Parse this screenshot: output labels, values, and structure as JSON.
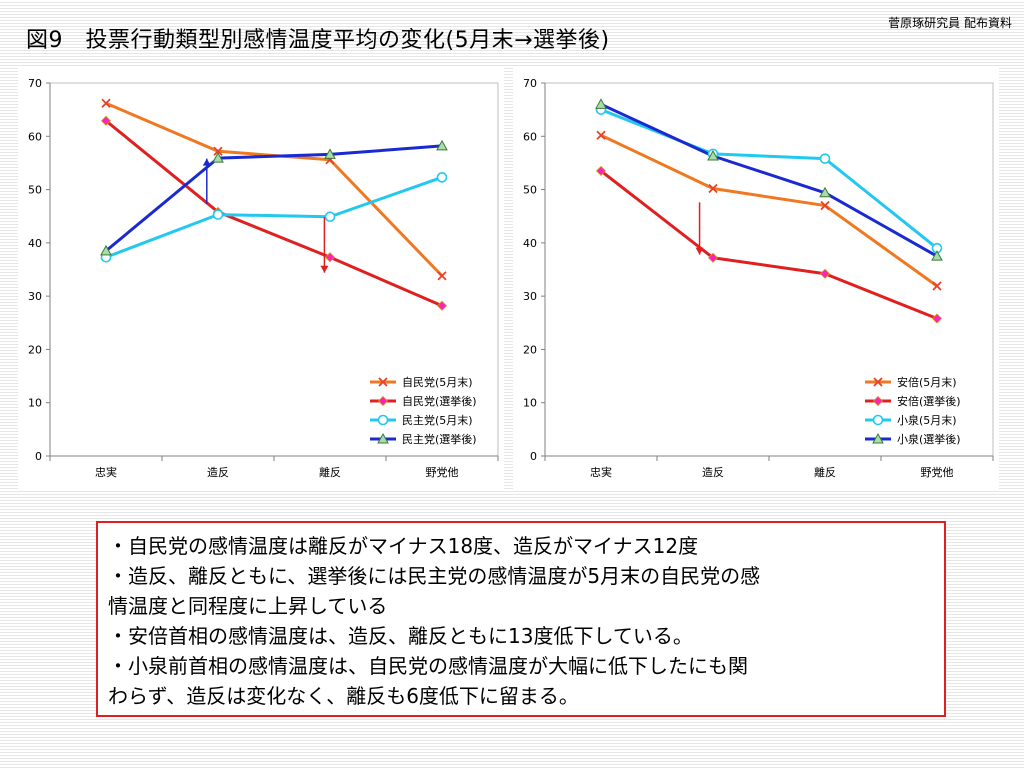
{
  "header": {
    "title": "図9　投票行動類型別感情温度平均の変化(5月末→選挙後)",
    "author": "菅原琢研究員 配布資料"
  },
  "colors": {
    "orange": "#f07820",
    "red": "#e02020",
    "cyan": "#22c8f0",
    "navy": "#1a2ad0",
    "marker_x": "#e8402a",
    "marker_diamond": "#ff20c0",
    "triangle_fill": "#a8dca8",
    "triangle_stroke": "#3a7a3a",
    "box_border": "#e02020"
  },
  "chart_data": [
    {
      "type": "line",
      "categories": [
        "忠実",
        "造反",
        "離反",
        "野党他"
      ],
      "ylim": [
        0,
        70
      ],
      "yticks": [
        0,
        10,
        20,
        30,
        40,
        50,
        60,
        70
      ],
      "grid": false,
      "legend_position": "bottom-right",
      "series": [
        {
          "name": "自民党(5月末)",
          "values": [
            66.2,
            57.2,
            55.6,
            33.8
          ],
          "color": "#f07820",
          "marker": "x"
        },
        {
          "name": "自民党(選挙後)",
          "values": [
            62.9,
            45.8,
            37.3,
            28.2
          ],
          "color": "#e02020",
          "marker": "diamond"
        },
        {
          "name": "民主党(5月末)",
          "values": [
            37.3,
            45.3,
            44.9,
            52.3
          ],
          "color": "#22c8f0",
          "marker": "circle"
        },
        {
          "name": "民主党(選挙後)",
          "values": [
            38.5,
            55.9,
            56.6,
            58.2
          ],
          "color": "#1a2ad0",
          "marker": "triangle"
        }
      ],
      "annotations": [
        {
          "type": "arrow",
          "direction": "up",
          "color": "#1a2ad0",
          "x": 1.4,
          "from": 47.3,
          "to": 55.8
        },
        {
          "type": "arrow",
          "direction": "down",
          "color": "#e02020",
          "x": 2.45,
          "from": 44.8,
          "to": 34.4
        }
      ]
    },
    {
      "type": "line",
      "categories": [
        "忠実",
        "造反",
        "離反",
        "野党他"
      ],
      "ylim": [
        0,
        70
      ],
      "yticks": [
        0,
        10,
        20,
        30,
        40,
        50,
        60,
        70
      ],
      "grid": false,
      "legend_position": "bottom-right",
      "series": [
        {
          "name": "安倍(5月末)",
          "values": [
            60.2,
            50.2,
            47.0,
            31.9
          ],
          "color": "#f07820",
          "marker": "x"
        },
        {
          "name": "安倍(選挙後)",
          "values": [
            53.5,
            37.2,
            34.2,
            25.8
          ],
          "color": "#e02020",
          "marker": "diamond"
        },
        {
          "name": "小泉(5月末)",
          "values": [
            65.0,
            56.7,
            55.8,
            39.0
          ],
          "color": "#22c8f0",
          "marker": "circle"
        },
        {
          "name": "小泉(選挙後)",
          "values": [
            66.0,
            56.3,
            49.4,
            37.5
          ],
          "color": "#1a2ad0",
          "marker": "triangle"
        }
      ],
      "annotations": [
        {
          "type": "arrow",
          "direction": "down",
          "color": "#e02020",
          "x": 1.38,
          "from": 47.6,
          "to": 37.8
        }
      ]
    }
  ],
  "notes": [
    "・自民党の感情温度は離反がマイナス18度、造反がマイナス12度",
    "・造反、離反ともに、選挙後には民主党の感情温度が5月末の自民党の感",
    "情温度と同程度に上昇している",
    "・安倍首相の感情温度は、造反、離反ともに13度低下している。",
    "・小泉前首相の感情温度は、自民党の感情温度が大幅に低下したにも関",
    "わらず、造反は変化なく、離反も6度低下に留まる。"
  ]
}
